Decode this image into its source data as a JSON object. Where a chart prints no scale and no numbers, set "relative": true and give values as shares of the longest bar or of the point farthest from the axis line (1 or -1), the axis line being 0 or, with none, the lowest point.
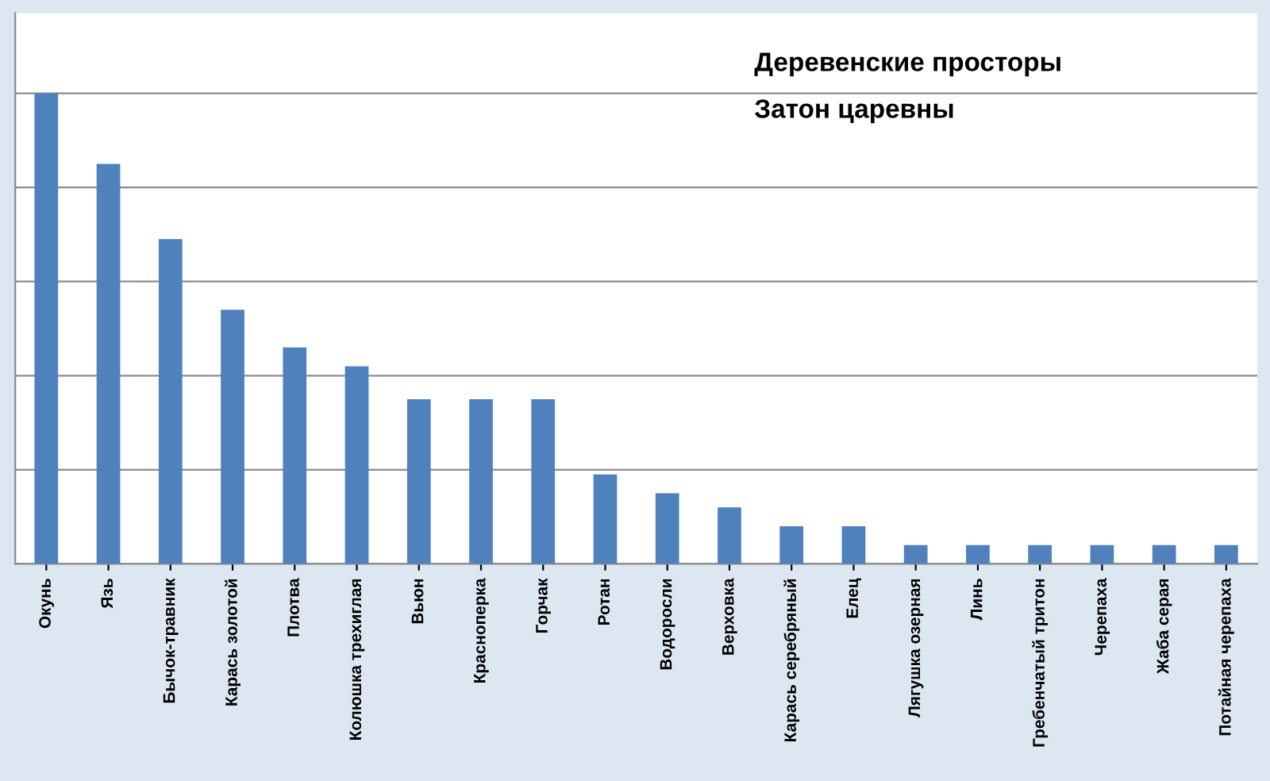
{
  "chart_data": {
    "type": "bar",
    "title": "Деревенские просторы",
    "subtitle": "Затон царевны",
    "categories": [
      "Окунь",
      "Язь",
      "Бычок-травник",
      "Карась золотой",
      "Плотва",
      "Колюшка трехиглая",
      "Вьюн",
      "Красноперка",
      "Горчак",
      "Ротан",
      "Водоросли",
      "Верховка",
      "Карась серебряный",
      "Елец",
      "Лягушка озерная",
      "Линь",
      "Гребенчатый тритон",
      "Черепаха",
      "Жаба серая",
      "Потайная черепаха"
    ],
    "values": [
      1,
      0.85,
      0.69,
      0.54,
      0.46,
      0.42,
      0.35,
      0.35,
      0.35,
      0.19,
      0.15,
      0.12,
      0.08,
      0.08,
      0.04,
      0.04,
      0.04,
      0.04,
      0.04,
      0.04
    ],
    "color": "#4f81bd",
    "relative": true,
    "grid": "y",
    "legend": false
  }
}
